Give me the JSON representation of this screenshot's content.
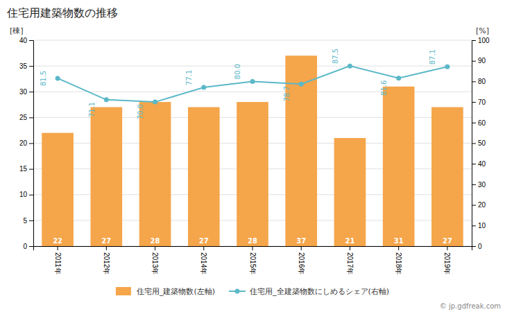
{
  "chart_data": {
    "type": "bar",
    "title": "住宅用建築物数の推移",
    "categories": [
      "2011年",
      "2012年",
      "2013年",
      "2014年",
      "2015年",
      "2016年",
      "2017年",
      "2018年",
      "2019年"
    ],
    "ylabel": "[棟]",
    "y2label": "[%]",
    "ylim": [
      0,
      40
    ],
    "yticks": [
      0,
      5,
      10,
      15,
      20,
      25,
      30,
      35,
      40
    ],
    "y2lim": [
      0,
      100
    ],
    "y2ticks": [
      0,
      10,
      20,
      30,
      40,
      50,
      60,
      70,
      80,
      90,
      100
    ],
    "grid": true,
    "legend": "bottom",
    "data_labels": true,
    "series": [
      {
        "name": "住宅用_建築物数(左軸)",
        "type": "bar",
        "color": "#F5A54A",
        "values": [
          22,
          27,
          28,
          27,
          28,
          37,
          21,
          31,
          27
        ]
      },
      {
        "name": "住宅用_全建築物数にしめるシェア(右軸)",
        "type": "line",
        "axis": "y2",
        "color": "#5BB8C8",
        "marker": "circle",
        "values": [
          81.5,
          71.1,
          70.0,
          77.1,
          80.0,
          78.7,
          87.5,
          81.6,
          87.1
        ],
        "value_labels": [
          "81.5",
          "71.1",
          "70.0",
          "77.1",
          "80.0",
          "78.7",
          "87.5",
          "81.6",
          "87.1"
        ]
      }
    ],
    "annotations": [
      "© jp.gdfreak.com"
    ]
  }
}
